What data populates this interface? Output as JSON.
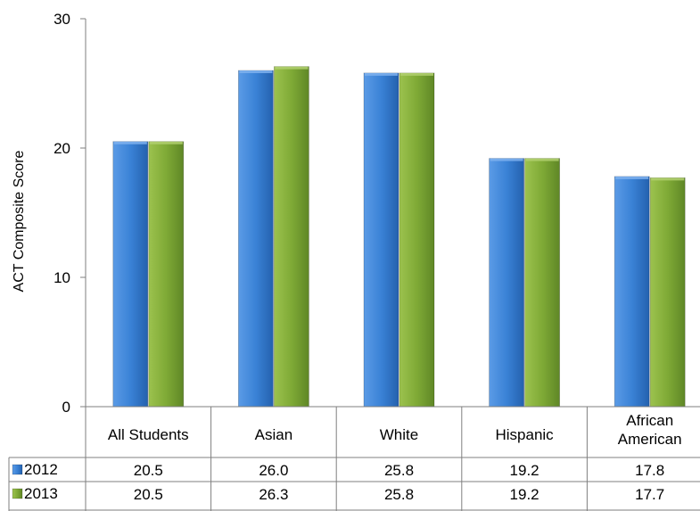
{
  "chart_data": {
    "type": "bar",
    "title": "",
    "xlabel": "",
    "ylabel": "ACT Composite Score",
    "ylim": [
      0,
      30
    ],
    "yticks": [
      "0",
      "10",
      "20",
      "30"
    ],
    "categories": [
      [
        "All Students"
      ],
      [
        "Asian"
      ],
      [
        "White"
      ],
      [
        "Hispanic"
      ],
      [
        "African",
        "American"
      ]
    ],
    "series": [
      {
        "name": "2012",
        "values": [
          20.5,
          26.0,
          25.8,
          19.2,
          17.8
        ],
        "labels": [
          "20.5",
          "26.0",
          "25.8",
          "19.2",
          "17.8"
        ],
        "color": "#2E75C9"
      },
      {
        "name": "2013",
        "values": [
          20.5,
          26.3,
          25.8,
          19.2,
          17.7
        ],
        "labels": [
          "20.5",
          "26.3",
          "25.8",
          "19.2",
          "17.7"
        ],
        "color": "#77A030"
      }
    ],
    "grid": false,
    "legend": "data-table"
  }
}
